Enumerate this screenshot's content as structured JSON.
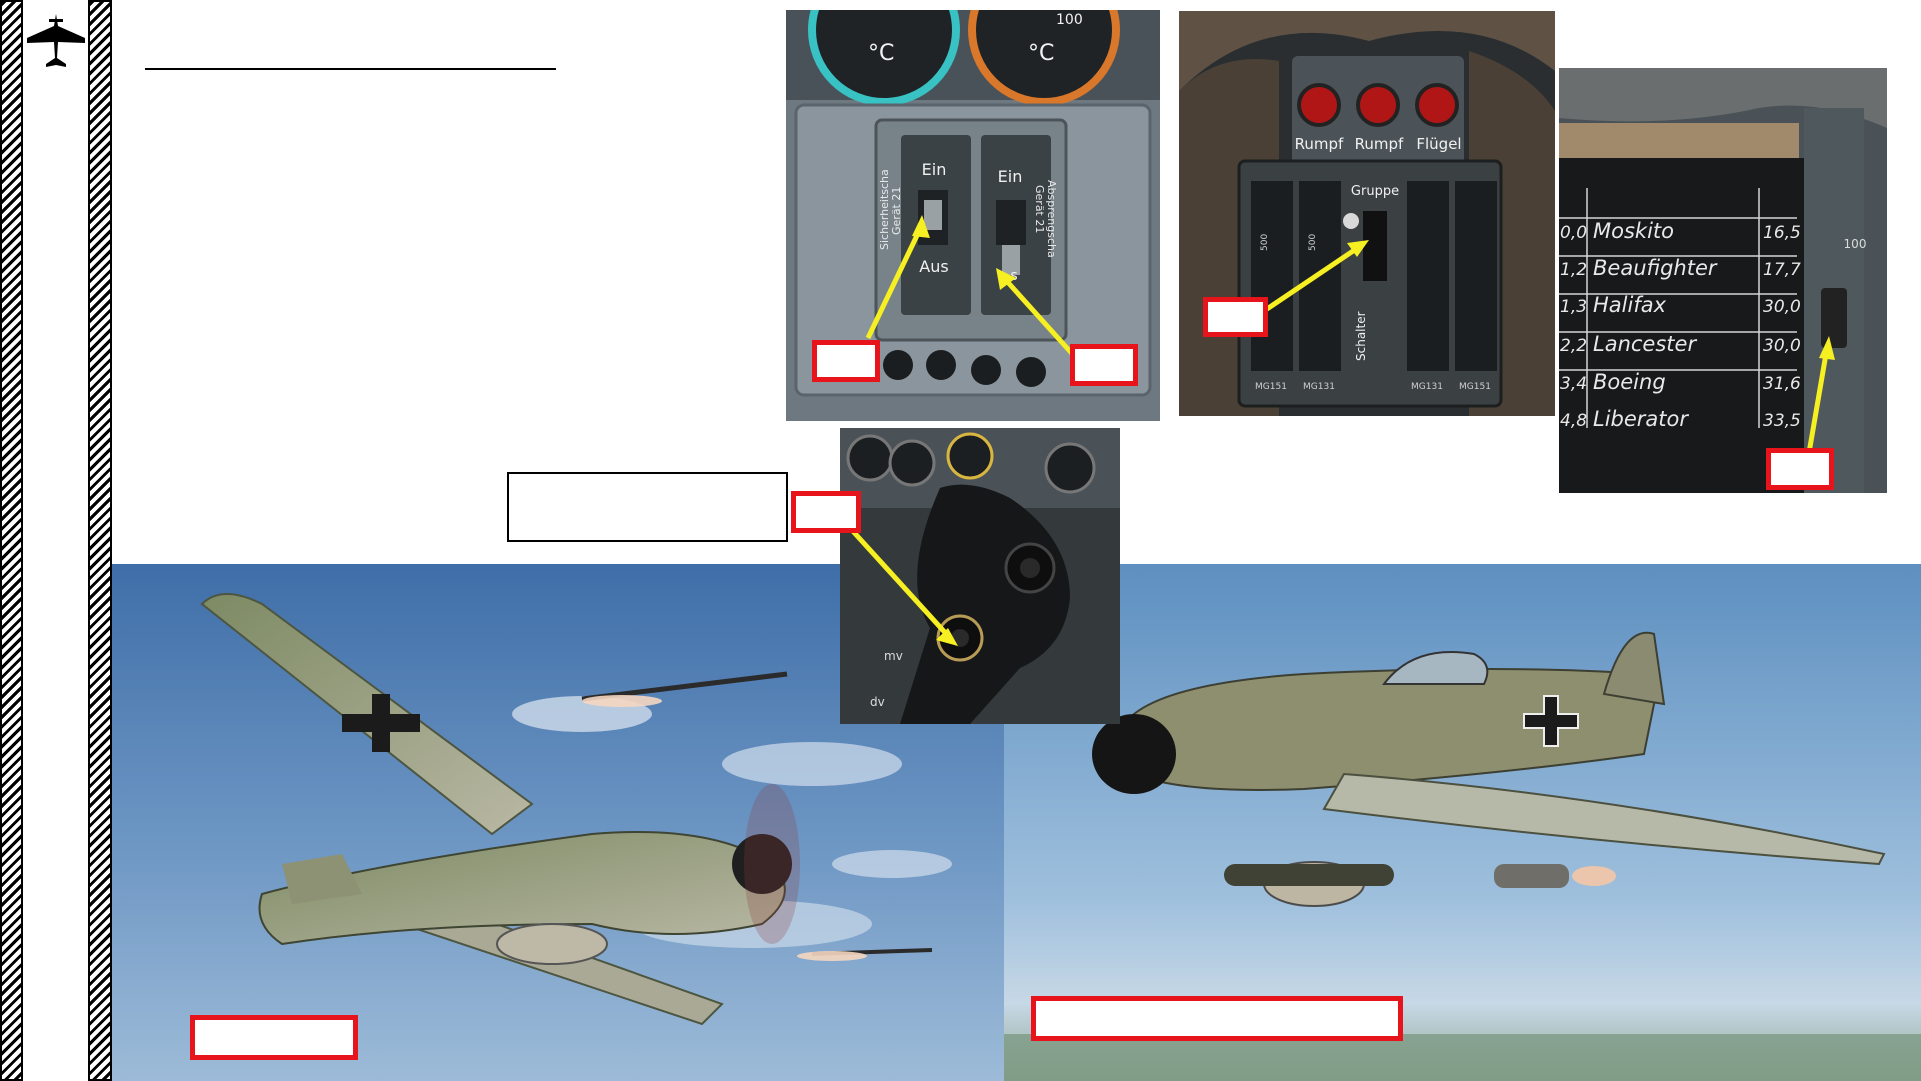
{
  "slide": {
    "title": "",
    "callout_text": "",
    "colors": {
      "annotation_red": "#e8141c",
      "arrow_yellow": "#f6ef22"
    }
  },
  "panel_switches": {
    "gauge_units": [
      "°C",
      "°C"
    ],
    "left_switch": {
      "on_label": "Ein",
      "off_label": "Aus",
      "side_label_line1": "Sicherheitscha",
      "side_label_line2": "Gerät 21"
    },
    "right_switch": {
      "on_label": "Ein",
      "off_label": "s",
      "side_label_line1": "Absprengscha",
      "side_label_line2": "Gerät 21"
    },
    "gauge_scale_fragment": "100"
  },
  "panel_weapons": {
    "lamp_labels": [
      "Rumpf",
      "Rumpf",
      "Flügel"
    ],
    "group_label": "Gruppe",
    "schalter_label": "Schalter",
    "counter_labels": [
      "MG151",
      "MG131",
      "MG131",
      "MG151"
    ],
    "scale_marks": [
      "500",
      "500"
    ]
  },
  "panel_revi": {
    "table_rows": [
      {
        "left": "0,0",
        "name": "Moskito",
        "right": "16,5"
      },
      {
        "left": "1,2",
        "name": "Beaufighter",
        "right": "17,7"
      },
      {
        "left": "1,3",
        "name": "Halifax",
        "right": "30,0"
      },
      {
        "left": "2,2",
        "name": "Lancester",
        "right": "30,0"
      },
      {
        "left": "3,4",
        "name": "Boeing",
        "right": "31,6"
      },
      {
        "left": "4,8",
        "name": "Liberator",
        "right": "33,5"
      }
    ],
    "scale_label": "100"
  },
  "panel_stick": {
    "labels": [
      "mv",
      "dv"
    ]
  },
  "icons": {
    "logo": "airplane-silhouette-icon"
  }
}
